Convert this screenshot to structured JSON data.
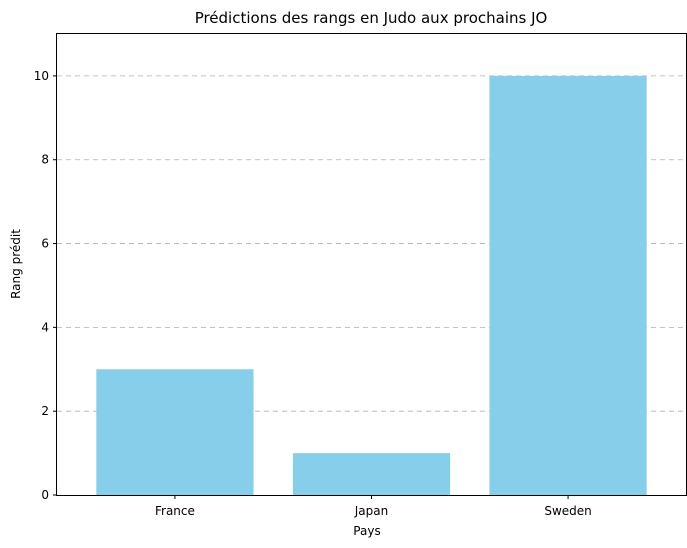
{
  "chart_data": {
    "type": "bar",
    "title": "Prédictions des rangs en Judo aux prochains JO",
    "xlabel": "Pays",
    "ylabel": "Rang prédit",
    "categories": [
      "France",
      "Japan",
      "Sweden"
    ],
    "values": [
      3,
      1,
      10
    ],
    "ylim": [
      0,
      11
    ],
    "yticks": [
      0,
      2,
      4,
      6,
      8,
      10
    ],
    "grid": "y-dashed",
    "bar_color": "#87ceeb"
  }
}
